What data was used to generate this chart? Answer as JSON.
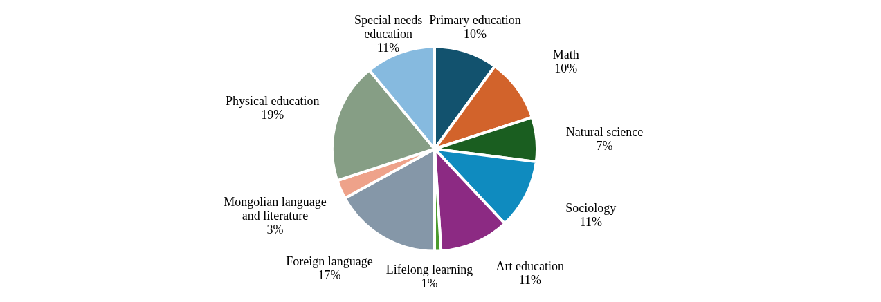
{
  "chart_data": {
    "type": "pie",
    "categories": [
      "Primary education",
      "Math",
      "Natural science",
      "Sociology",
      "Art education",
      "Lifelong learning",
      "Foreign language",
      "Mongolian language and literature",
      "Physical education",
      "Special needs education"
    ],
    "values": [
      10,
      10,
      7,
      11,
      11,
      1,
      17,
      3,
      19,
      11
    ],
    "value_labels": [
      "10%",
      "10%",
      "7%",
      "11%",
      "11%",
      "1%",
      "17%",
      "3%",
      "19%",
      "11%"
    ],
    "colors": [
      "#12526e",
      "#d2632b",
      "#1a5e20",
      "#0f8bbf",
      "#8c2a83",
      "#4a9a2c",
      "#8597a8",
      "#eea28a",
      "#869e85",
      "#86badf"
    ],
    "legend": false
  }
}
